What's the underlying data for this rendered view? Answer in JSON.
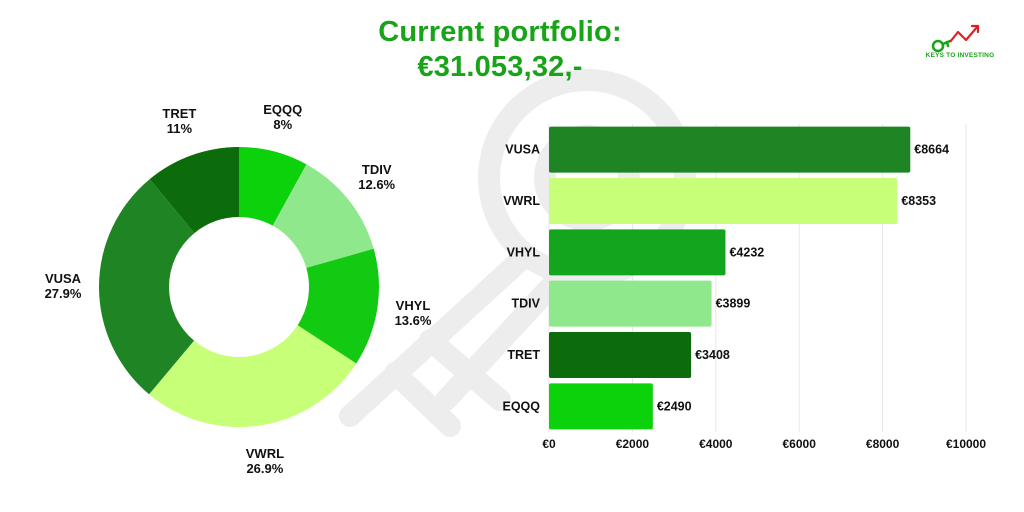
{
  "header": {
    "title_line1": "Current portfolio:",
    "title_line2": "€31.053,32,-"
  },
  "logo": {
    "text": "KEYS TO INVESTING",
    "icon": "key-growth-arrow-icon",
    "color": "#19a319"
  },
  "chart_data": [
    {
      "type": "pie",
      "variant": "donut",
      "slices": [
        {
          "label": "EQQQ",
          "value": 8,
          "value_label": "8%",
          "color": "#0bd20b"
        },
        {
          "label": "TDIV",
          "value": 12.6,
          "value_label": "12.6%",
          "color": "#90e88c"
        },
        {
          "label": "VHYL",
          "value": 13.6,
          "value_label": "13.6%",
          "color": "#13ca13"
        },
        {
          "label": "VWRL",
          "value": 26.9,
          "value_label": "26.9%",
          "color": "#c7ff78"
        },
        {
          "label": "VUSA",
          "value": 27.9,
          "value_label": "27.9%",
          "color": "#1f8423"
        },
        {
          "label": "TRET",
          "value": 11,
          "value_label": "11%",
          "color": "#0c6c0c"
        }
      ]
    },
    {
      "type": "bar",
      "orientation": "horizontal",
      "categories": [
        "VUSA",
        "VWRL",
        "VHYL",
        "TDIV",
        "TRET",
        "EQQQ"
      ],
      "values": [
        8664,
        8353,
        4232,
        3899,
        3408,
        2490
      ],
      "value_labels": [
        "€8664",
        "€8353",
        "€4232",
        "€3899",
        "€3408",
        "€2490"
      ],
      "colors": [
        "#1f8423",
        "#c7ff78",
        "#13a51e",
        "#90e88c",
        "#0c6c0c",
        "#0bd20b"
      ],
      "xlim": [
        0,
        10000
      ],
      "xticks": [
        0,
        2000,
        4000,
        6000,
        8000,
        10000
      ],
      "xtick_labels": [
        "€0",
        "€2000",
        "€4000",
        "€6000",
        "€8000",
        "€10000"
      ],
      "grid": "vertical"
    }
  ]
}
